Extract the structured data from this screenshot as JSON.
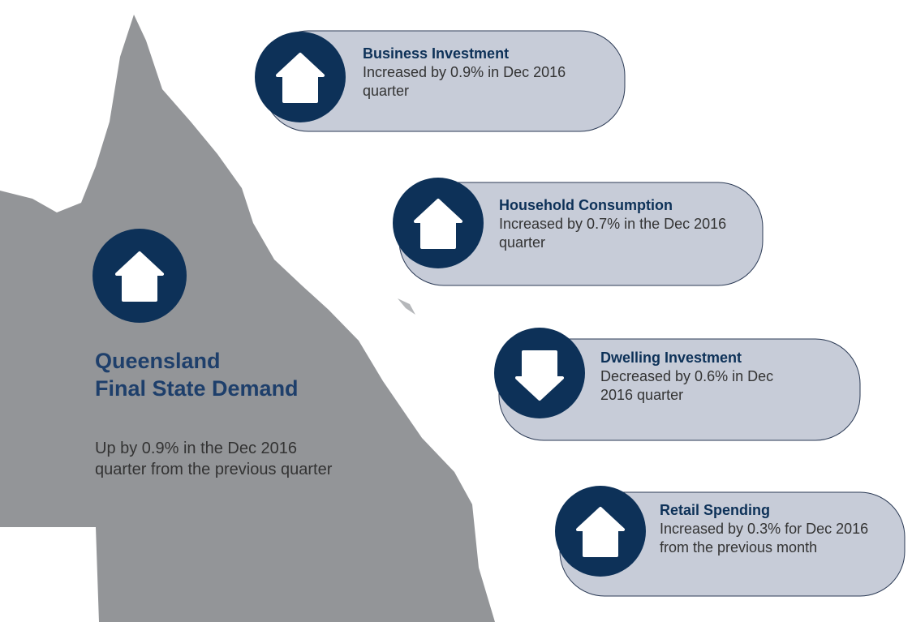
{
  "main": {
    "title_lines": [
      "Queensland",
      "Final State Demand"
    ],
    "description": "Up by 0.9% in the Dec 2016 quarter from the previous quarter"
  },
  "cards": [
    {
      "title": "Business Investment",
      "text": "Increased by 0.9% in Dec 2016 quarter",
      "direction": "up"
    },
    {
      "title": "Household Consumption",
      "text": "Increased by 0.7% in the Dec 2016 quarter",
      "direction": "up"
    },
    {
      "title": "Dwelling Investment",
      "text": "Decreased by 0.6% in Dec 2016 quarter",
      "direction": "down"
    },
    {
      "title": "Retail Spending",
      "text": "Increased by 0.3% for Dec 2016 from the previous month",
      "direction": "up"
    }
  ]
}
